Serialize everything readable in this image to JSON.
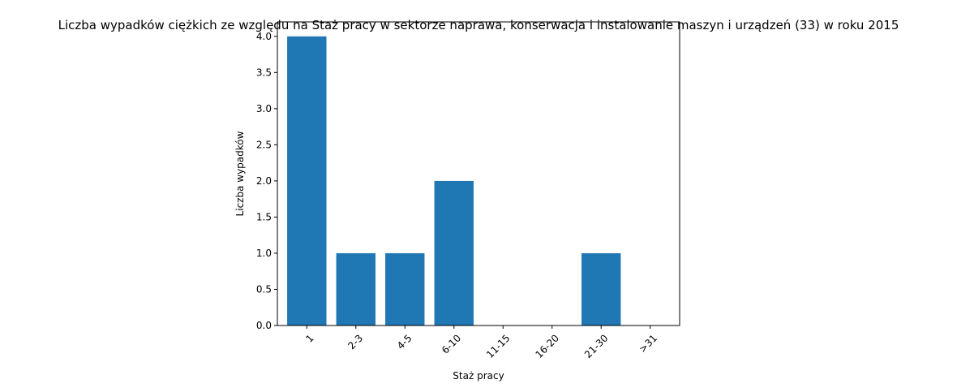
{
  "chart_data": {
    "type": "bar",
    "title": "Liczba wypadków ciężkich ze względu na Staż pracy w sektorze naprawa, konserwacja i instalowanie maszyn i urządzeń  (33) w roku 2015",
    "xlabel": "Staż pracy",
    "ylabel": "Liczba wypadków",
    "categories": [
      "1",
      "2-3",
      "4-5",
      "6-10",
      "11-15",
      "16-20",
      "21-30",
      ">31"
    ],
    "values": [
      4,
      1,
      1,
      2,
      0,
      0,
      1,
      0
    ],
    "ylim": [
      0,
      4.2
    ],
    "yticks": [
      0.0,
      0.5,
      1.0,
      1.5,
      2.0,
      2.5,
      3.0,
      3.5,
      4.0
    ],
    "ytick_labels": [
      "0.0",
      "0.5",
      "1.0",
      "1.5",
      "2.0",
      "2.5",
      "3.0",
      "3.5",
      "4.0"
    ],
    "xtick_rotation": 45,
    "grid": false,
    "colors": {
      "bar": "#1f77b4",
      "axis": "#000000",
      "background": "#ffffff"
    }
  }
}
